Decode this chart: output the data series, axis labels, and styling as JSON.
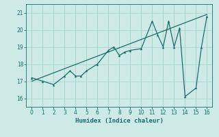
{
  "xlabel": "Humidex (Indice chaleur)",
  "xlim": [
    -0.5,
    16.5
  ],
  "ylim": [
    15.5,
    21.5
  ],
  "xticks": [
    0,
    1,
    2,
    3,
    4,
    5,
    6,
    7,
    8,
    9,
    10,
    11,
    12,
    13,
    14,
    15,
    16
  ],
  "yticks": [
    16,
    17,
    18,
    19,
    20,
    21
  ],
  "bg_color": "#ceeae6",
  "line_color": "#1a6b6b",
  "grid_color": "#aed8d2",
  "data_x": [
    0,
    1,
    2,
    3,
    3.5,
    4,
    4.5,
    5,
    6,
    7,
    7.5,
    8,
    8.5,
    9,
    10,
    11,
    11.5,
    12,
    12.5,
    13,
    13.5,
    14,
    15,
    15.5,
    16
  ],
  "data_y": [
    17.2,
    17.0,
    16.8,
    17.3,
    17.6,
    17.3,
    17.3,
    17.6,
    18.0,
    18.8,
    19.0,
    18.5,
    18.7,
    18.8,
    18.9,
    20.5,
    19.7,
    19.0,
    20.5,
    19.0,
    20.1,
    16.1,
    16.6,
    19.0,
    20.8
  ],
  "trend_x": [
    0,
    16
  ],
  "trend_y": [
    17.0,
    20.9
  ]
}
